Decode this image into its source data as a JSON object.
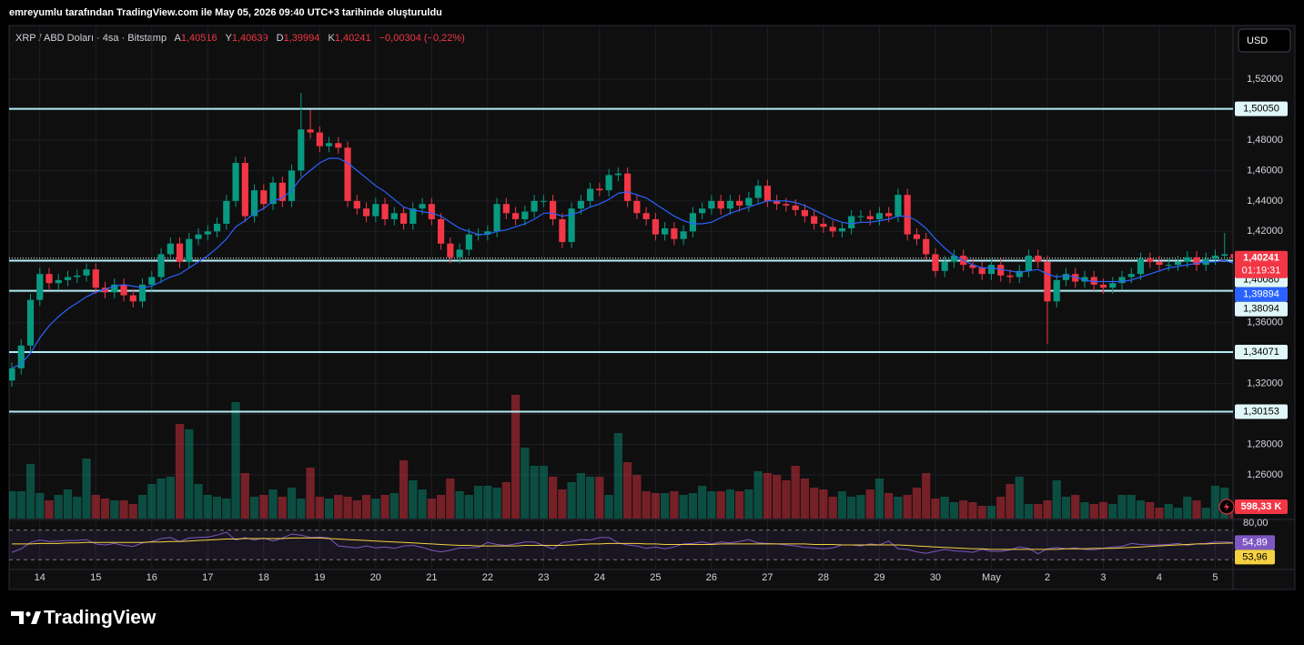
{
  "chart_data": {
    "type": "candlestick",
    "header": "emreyumlu tarafından TradingView.com ile May 05, 2026 09:40 UTC+3 tarihinde oluşturuldu",
    "title": "XRP / ABD Doları · 4sa · Bitstamp",
    "legend": {
      "keys": [
        "A",
        "Y",
        "D",
        "K"
      ],
      "values": [
        "1,40516",
        "1,40639",
        "1,39994",
        "1,40241"
      ],
      "change": "−0,00304 (−0,22%)"
    },
    "currency": "USD",
    "brand": "TradingView",
    "up_color": "#089981",
    "down_color": "#f23645",
    "xlim": [
      0,
      131
    ],
    "xticks": [
      {
        "value": 3,
        "label": "14"
      },
      {
        "value": 9,
        "label": "15"
      },
      {
        "value": 15,
        "label": "16"
      },
      {
        "value": 21,
        "label": "17"
      },
      {
        "value": 27,
        "label": "18"
      },
      {
        "value": 33,
        "label": "19"
      },
      {
        "value": 39,
        "label": "20"
      },
      {
        "value": 45,
        "label": "21"
      },
      {
        "value": 51,
        "label": "22"
      },
      {
        "value": 57,
        "label": "23"
      },
      {
        "value": 63,
        "label": "24"
      },
      {
        "value": 69,
        "label": "25"
      },
      {
        "value": 75,
        "label": "26"
      },
      {
        "value": 81,
        "label": "27"
      },
      {
        "value": 87,
        "label": "28"
      },
      {
        "value": 93,
        "label": "29"
      },
      {
        "value": 99,
        "label": "30"
      },
      {
        "value": 105,
        "label": "May"
      },
      {
        "value": 111,
        "label": "2"
      },
      {
        "value": 117,
        "label": "3"
      },
      {
        "value": 123,
        "label": "4"
      },
      {
        "value": 129,
        "label": "5"
      }
    ],
    "ylim": [
      1.2313,
      1.5553
    ],
    "yticks": [
      {
        "value": 1.26,
        "label": "1,26000"
      },
      {
        "value": 1.28,
        "label": "1,28000"
      },
      {
        "value": 1.3,
        "label": "1,30000"
      },
      {
        "value": 1.32,
        "label": "1,32000"
      },
      {
        "value": 1.34,
        "label": "1,34000"
      },
      {
        "value": 1.36,
        "label": "1,36000"
      },
      {
        "value": 1.38,
        "label": "1,38000"
      },
      {
        "value": 1.4,
        "label": "1,40000"
      },
      {
        "value": 1.42,
        "label": "1,42000"
      },
      {
        "value": 1.44,
        "label": "1,44000"
      },
      {
        "value": 1.46,
        "label": "1,46000"
      },
      {
        "value": 1.48,
        "label": "1,48000"
      },
      {
        "value": 1.5,
        "label": "1,50000"
      },
      {
        "value": 1.52,
        "label": "1,52000"
      }
    ],
    "hlines": [
      {
        "value": 1.5005,
        "label": "1,50050"
      },
      {
        "value": 1.4008,
        "label": "1,40080"
      },
      {
        "value": 1.38094,
        "label": "1,38094"
      },
      {
        "value": 1.34071,
        "label": "1,34071"
      },
      {
        "value": 1.30153,
        "label": "1,30153"
      }
    ],
    "last_price": {
      "value": 1.40241,
      "label": "1,40241",
      "countdown": "01:19:31"
    },
    "open": [
      1.322,
      1.33,
      1.345,
      1.375,
      1.392,
      1.386,
      1.388,
      1.39,
      1.391,
      1.395,
      1.383,
      1.38,
      1.385,
      1.378,
      1.374,
      1.385,
      1.39,
      1.405,
      1.412,
      1.4,
      1.415,
      1.418,
      1.42,
      1.425,
      1.44,
      1.465,
      1.43,
      1.447,
      1.438,
      1.452,
      1.44,
      1.46,
      1.487,
      1.485,
      1.476,
      1.478,
      1.475,
      1.44,
      1.435,
      1.43,
      1.438,
      1.428,
      1.432,
      1.425,
      1.435,
      1.438,
      1.428,
      1.412,
      1.403,
      1.408,
      1.418,
      1.418,
      1.42,
      1.438,
      1.432,
      1.428,
      1.433,
      1.44,
      1.44,
      1.428,
      1.413,
      1.435,
      1.44,
      1.448,
      1.447,
      1.457,
      1.458,
      1.44,
      1.432,
      1.428,
      1.418,
      1.422,
      1.415,
      1.42,
      1.432,
      1.435,
      1.44,
      1.435,
      1.44,
      1.437,
      1.442,
      1.45,
      1.44,
      1.438,
      1.437,
      1.434,
      1.43,
      1.425,
      1.423,
      1.42,
      1.422,
      1.43,
      1.43,
      1.428,
      1.432,
      1.43,
      1.444,
      1.418,
      1.415,
      1.405,
      1.394,
      1.4,
      1.404,
      1.398,
      1.396,
      1.392,
      1.398,
      1.391,
      1.39,
      1.394,
      1.404,
      1.4,
      1.374,
      1.388,
      1.392,
      1.387,
      1.39,
      1.385,
      1.383,
      1.386,
      1.39,
      1.392,
      1.402,
      1.4,
      1.398,
      1.398,
      1.4,
      1.403,
      1.398,
      1.402,
      1.404,
      1.40516
    ],
    "high": [
      1.334,
      1.349,
      1.379,
      1.396,
      1.396,
      1.392,
      1.394,
      1.395,
      1.399,
      1.399,
      1.387,
      1.389,
      1.389,
      1.382,
      1.389,
      1.394,
      1.409,
      1.416,
      1.416,
      1.419,
      1.422,
      1.424,
      1.429,
      1.444,
      1.469,
      1.469,
      1.451,
      1.451,
      1.456,
      1.456,
      1.464,
      1.511,
      1.5,
      1.489,
      1.482,
      1.482,
      1.479,
      1.444,
      1.439,
      1.442,
      1.442,
      1.436,
      1.436,
      1.439,
      1.442,
      1.442,
      1.432,
      1.416,
      1.412,
      1.422,
      1.422,
      1.424,
      1.442,
      1.442,
      1.436,
      1.437,
      1.444,
      1.444,
      1.444,
      1.432,
      1.439,
      1.444,
      1.452,
      1.452,
      1.461,
      1.462,
      1.462,
      1.444,
      1.436,
      1.432,
      1.426,
      1.426,
      1.424,
      1.436,
      1.439,
      1.444,
      1.444,
      1.444,
      1.444,
      1.446,
      1.454,
      1.454,
      1.444,
      1.442,
      1.441,
      1.438,
      1.434,
      1.429,
      1.427,
      1.426,
      1.434,
      1.434,
      1.434,
      1.436,
      1.436,
      1.448,
      1.448,
      1.422,
      1.419,
      1.409,
      1.404,
      1.408,
      1.408,
      1.402,
      1.4,
      1.402,
      1.402,
      1.395,
      1.398,
      1.408,
      1.408,
      1.404,
      1.392,
      1.396,
      1.396,
      1.394,
      1.394,
      1.389,
      1.39,
      1.394,
      1.396,
      1.406,
      1.406,
      1.404,
      1.402,
      1.404,
      1.407,
      1.407,
      1.406,
      1.408,
      1.419,
      1.40639
    ],
    "low": [
      1.318,
      1.326,
      1.341,
      1.371,
      1.382,
      1.382,
      1.384,
      1.386,
      1.387,
      1.379,
      1.376,
      1.376,
      1.374,
      1.37,
      1.37,
      1.381,
      1.386,
      1.401,
      1.396,
      1.396,
      1.411,
      1.414,
      1.416,
      1.421,
      1.436,
      1.426,
      1.426,
      1.434,
      1.434,
      1.436,
      1.436,
      1.456,
      1.481,
      1.472,
      1.472,
      1.471,
      1.436,
      1.431,
      1.426,
      1.426,
      1.424,
      1.424,
      1.421,
      1.421,
      1.431,
      1.424,
      1.408,
      1.399,
      1.399,
      1.404,
      1.414,
      1.414,
      1.416,
      1.428,
      1.424,
      1.424,
      1.429,
      1.436,
      1.424,
      1.409,
      1.409,
      1.431,
      1.436,
      1.443,
      1.443,
      1.453,
      1.436,
      1.428,
      1.424,
      1.414,
      1.414,
      1.411,
      1.411,
      1.416,
      1.428,
      1.431,
      1.431,
      1.431,
      1.433,
      1.433,
      1.438,
      1.436,
      1.434,
      1.433,
      1.43,
      1.426,
      1.421,
      1.419,
      1.416,
      1.416,
      1.418,
      1.426,
      1.424,
      1.424,
      1.426,
      1.426,
      1.414,
      1.411,
      1.401,
      1.39,
      1.39,
      1.396,
      1.394,
      1.392,
      1.388,
      1.388,
      1.387,
      1.386,
      1.386,
      1.39,
      1.396,
      1.346,
      1.37,
      1.384,
      1.383,
      1.383,
      1.381,
      1.379,
      1.379,
      1.382,
      1.386,
      1.388,
      1.396,
      1.394,
      1.394,
      1.394,
      1.396,
      1.394,
      1.394,
      1.398,
      1.4,
      1.39994
    ],
    "close": [
      1.33,
      1.345,
      1.375,
      1.392,
      1.386,
      1.388,
      1.39,
      1.391,
      1.395,
      1.383,
      1.38,
      1.385,
      1.378,
      1.374,
      1.385,
      1.39,
      1.405,
      1.412,
      1.4,
      1.415,
      1.418,
      1.42,
      1.425,
      1.44,
      1.465,
      1.43,
      1.447,
      1.438,
      1.452,
      1.44,
      1.46,
      1.487,
      1.485,
      1.476,
      1.478,
      1.475,
      1.44,
      1.435,
      1.43,
      1.438,
      1.428,
      1.432,
      1.425,
      1.435,
      1.438,
      1.428,
      1.412,
      1.403,
      1.408,
      1.418,
      1.418,
      1.42,
      1.438,
      1.432,
      1.428,
      1.433,
      1.44,
      1.44,
      1.428,
      1.413,
      1.435,
      1.44,
      1.448,
      1.447,
      1.457,
      1.458,
      1.44,
      1.432,
      1.428,
      1.418,
      1.422,
      1.415,
      1.42,
      1.432,
      1.435,
      1.44,
      1.435,
      1.44,
      1.437,
      1.442,
      1.45,
      1.44,
      1.438,
      1.437,
      1.434,
      1.43,
      1.425,
      1.423,
      1.42,
      1.422,
      1.43,
      1.43,
      1.428,
      1.432,
      1.43,
      1.444,
      1.418,
      1.415,
      1.405,
      1.394,
      1.4,
      1.404,
      1.398,
      1.396,
      1.392,
      1.398,
      1.391,
      1.39,
      1.394,
      1.404,
      1.4,
      1.374,
      1.388,
      1.392,
      1.387,
      1.39,
      1.385,
      1.383,
      1.386,
      1.39,
      1.392,
      1.402,
      1.4,
      1.398,
      1.398,
      1.4,
      1.403,
      1.398,
      1.402,
      1.404,
      1.405,
      1.40241
    ],
    "ma": [
      1.33,
      1.333,
      1.34,
      1.35,
      1.358,
      1.364,
      1.369,
      1.373,
      1.377,
      1.38,
      1.382,
      1.384,
      1.385,
      1.384,
      1.383,
      1.384,
      1.387,
      1.39,
      1.392,
      1.396,
      1.4,
      1.404,
      1.409,
      1.415,
      1.423,
      1.427,
      1.432,
      1.435,
      1.44,
      1.442,
      1.447,
      1.455,
      1.46,
      1.465,
      1.468,
      1.468,
      1.465,
      1.46,
      1.455,
      1.45,
      1.446,
      1.441,
      1.436,
      1.434,
      1.433,
      1.432,
      1.43,
      1.426,
      1.422,
      1.42,
      1.418,
      1.418,
      1.42,
      1.421,
      1.423,
      1.425,
      1.428,
      1.432,
      1.432,
      1.43,
      1.431,
      1.433,
      1.436,
      1.438,
      1.441,
      1.445,
      1.446,
      1.444,
      1.442,
      1.438,
      1.434,
      1.43,
      1.427,
      1.425,
      1.425,
      1.426,
      1.429,
      1.432,
      1.434,
      1.436,
      1.438,
      1.44,
      1.44,
      1.44,
      1.439,
      1.437,
      1.434,
      1.431,
      1.428,
      1.426,
      1.425,
      1.426,
      1.426,
      1.427,
      1.428,
      1.43,
      1.43,
      1.427,
      1.422,
      1.415,
      1.409,
      1.404,
      1.401,
      1.398,
      1.396,
      1.396,
      1.395,
      1.394,
      1.393,
      1.394,
      1.395,
      1.392,
      1.39,
      1.391,
      1.39,
      1.388,
      1.387,
      1.387,
      1.387,
      1.387,
      1.388,
      1.39,
      1.392,
      1.394,
      1.396,
      1.397,
      1.398,
      1.399,
      1.4,
      1.4,
      1.401,
      1.39894
    ],
    "ma_label": "1,39894",
    "ma_color": "#2962ff",
    "volume": [
      1500000.0,
      1500000.0,
      3000000.0,
      1400000.0,
      1000000.0,
      1300000.0,
      1600000.0,
      1200000.0,
      3300000.0,
      1300000.0,
      1100000.0,
      1000000.0,
      1000000.0,
      800000.0,
      1300000.0,
      1900000.0,
      2200000.0,
      2300000.0,
      5200000.0,
      4900000.0,
      1900000.0,
      1300000.0,
      1200000.0,
      1100000.0,
      6400000.0,
      2500000.0,
      1200000.0,
      1300000.0,
      1600000.0,
      1200000.0,
      1700000.0,
      1100000.0,
      2800000.0,
      1200000.0,
      1100000.0,
      1300000.0,
      1200000.0,
      1000000.0,
      1300000.0,
      1100000.0,
      1300000.0,
      1400000.0,
      3200000.0,
      2100000.0,
      1600000.0,
      1100000.0,
      1300000.0,
      2200000.0,
      1500000.0,
      1300000.0,
      1800000.0,
      1800000.0,
      1700000.0,
      2000000.0,
      6800000.0,
      3900000.0,
      2900000.0,
      2900000.0,
      2300000.0,
      1600000.0,
      2000000.0,
      2500000.0,
      2300000.0,
      2300000.0,
      1300000.0,
      4700000.0,
      3100000.0,
      2400000.0,
      1500000.0,
      1400000.0,
      1400000.0,
      1500000.0,
      1300000.0,
      1400000.0,
      1800000.0,
      1500000.0,
      1500000.0,
      1600000.0,
      1500000.0,
      1600000.0,
      2600000.0,
      2500000.0,
      2400000.0,
      2100000.0,
      2900000.0,
      2200000.0,
      1700000.0,
      1600000.0,
      1200000.0,
      1500000.0,
      1200000.0,
      1300000.0,
      1600000.0,
      2200000.0,
      1400000.0,
      1200000.0,
      1300000.0,
      1700000.0,
      2500000.0,
      1100000.0,
      1200000.0,
      900000.0,
      1000000.0,
      900000.0,
      700000.0,
      700000.0,
      1200000.0,
      1900000.0,
      2300000.0,
      800000.0,
      800000.0,
      1000000.0,
      2100000.0,
      1200000.0,
      1300000.0,
      900000.0,
      800000.0,
      900000.0,
      800000.0,
      1300000.0,
      1300000.0,
      1000000.0,
      900000.0,
      600000.0,
      800000.0,
      600000.0,
      1200000.0,
      1000000.0,
      600000.0,
      1800000.0,
      1700000.0,
      598330
    ],
    "volume_label": "598,33 K",
    "volume_ylim": [
      0,
      24000000.0
    ],
    "rsi": [
      35,
      42,
      55,
      60,
      57,
      58,
      59,
      59,
      61,
      52,
      50,
      53,
      49,
      47,
      54,
      57,
      63,
      65,
      57,
      64,
      65,
      66,
      70,
      76,
      60,
      65,
      60,
      64,
      58,
      64,
      72,
      70,
      65,
      66,
      64,
      48,
      46,
      44,
      48,
      44,
      46,
      43,
      48,
      49,
      45,
      39,
      36,
      39,
      44,
      44,
      45,
      55,
      51,
      49,
      52,
      56,
      56,
      49,
      42,
      55,
      57,
      61,
      60,
      65,
      65,
      54,
      50,
      48,
      43,
      46,
      42,
      46,
      52,
      53,
      56,
      52,
      56,
      54,
      57,
      61,
      54,
      53,
      52,
      50,
      48,
      45,
      44,
      42,
      44,
      50,
      50,
      48,
      52,
      50,
      58,
      42,
      41,
      36,
      33,
      37,
      41,
      38,
      37,
      35,
      41,
      37,
      37,
      40,
      46,
      43,
      32,
      42,
      45,
      42,
      44,
      41,
      40,
      43,
      46,
      47,
      53,
      51,
      50,
      50,
      51,
      53,
      49,
      52,
      53,
      56,
      56,
      54.89
    ],
    "rsi_ma": [
      52,
      52,
      52,
      53,
      53,
      53,
      54,
      54,
      55,
      55,
      55,
      55,
      55,
      55,
      55,
      56,
      56,
      57,
      57,
      58,
      59,
      60,
      61,
      62,
      62,
      63,
      63,
      63,
      63,
      63,
      64,
      64,
      64,
      64,
      63,
      62,
      61,
      60,
      59,
      58,
      57,
      56,
      55,
      54,
      53,
      52,
      51,
      50,
      49,
      49,
      48,
      48,
      48,
      48,
      48,
      49,
      49,
      49,
      49,
      49,
      50,
      51,
      52,
      52,
      53,
      53,
      53,
      53,
      52,
      52,
      51,
      51,
      51,
      51,
      51,
      51,
      52,
      52,
      52,
      52,
      52,
      52,
      52,
      52,
      52,
      52,
      51,
      51,
      51,
      50,
      50,
      50,
      50,
      50,
      50,
      50,
      49,
      48,
      47,
      46,
      45,
      44,
      43,
      42,
      42,
      41,
      41,
      41,
      41,
      41,
      41,
      41,
      41,
      42,
      42,
      42,
      43,
      43,
      43,
      44,
      45,
      46,
      47,
      48,
      49,
      50,
      51,
      52,
      52,
      53,
      53.5,
      53.96
    ],
    "rsi_labels": [
      "54,89",
      "53,96"
    ],
    "rsi_color": "#7e57c2",
    "rsi_ma_color": "#f5d142",
    "rsi_ylim": [
      0,
      100
    ],
    "rsi_band": [
      20,
      80
    ],
    "rsi_yticks": [
      {
        "value": 80,
        "label": "80,00"
      }
    ]
  }
}
